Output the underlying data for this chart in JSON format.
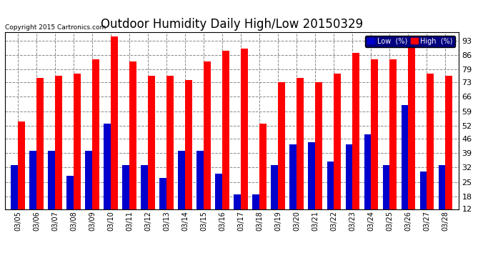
{
  "title": "Outdoor Humidity Daily High/Low 20150329",
  "copyright": "Copyright 2015 Cartronics.com",
  "dates": [
    "03/05",
    "03/06",
    "03/07",
    "03/08",
    "03/09",
    "03/10",
    "03/11",
    "03/12",
    "03/13",
    "03/14",
    "03/15",
    "03/16",
    "03/17",
    "03/18",
    "03/19",
    "03/20",
    "03/21",
    "03/22",
    "03/23",
    "03/24",
    "03/25",
    "03/26",
    "03/27",
    "03/28"
  ],
  "high": [
    54,
    75,
    76,
    77,
    84,
    95,
    83,
    76,
    76,
    74,
    83,
    88,
    89,
    53,
    73,
    75,
    73,
    77,
    87,
    84,
    84,
    92,
    77,
    76
  ],
  "low": [
    33,
    40,
    40,
    28,
    40,
    53,
    33,
    33,
    27,
    40,
    40,
    29,
    19,
    19,
    33,
    43,
    44,
    35,
    43,
    48,
    33,
    62,
    30,
    33
  ],
  "ylim_min": 12,
  "ylim_max": 95,
  "yticks": [
    12,
    18,
    25,
    32,
    39,
    46,
    52,
    59,
    66,
    73,
    79,
    86,
    93
  ],
  "high_color": "#ff0000",
  "low_color": "#0000cc",
  "bg_color": "#ffffff",
  "grid_color": "#888888",
  "title_fontsize": 12,
  "legend_low_label": "Low  (%)",
  "legend_high_label": "High  (%)"
}
